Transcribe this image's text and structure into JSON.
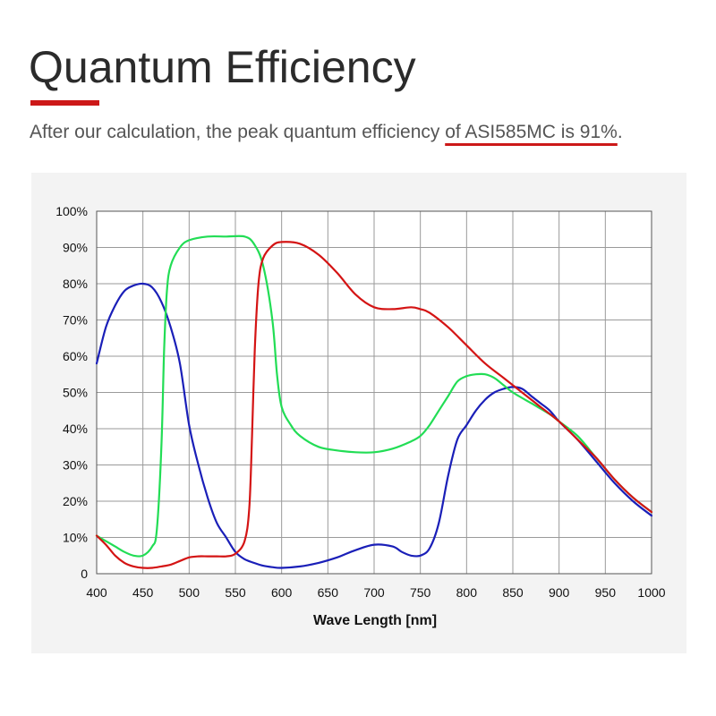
{
  "header": {
    "title": "Quantum Efficiency",
    "subtitle_prefix": "After our calculation, the peak quantum efficiency ",
    "subtitle_highlight": "of ASI585MC is 91%",
    "subtitle_suffix": ".",
    "accent_color": "#cc1818"
  },
  "chart_data": {
    "type": "line",
    "title": "",
    "xlabel": "Wave Length [nm]",
    "ylabel": "",
    "xlim": [
      400,
      1000
    ],
    "ylim": [
      0,
      100
    ],
    "grid": true,
    "x_ticks": [
      400,
      450,
      500,
      550,
      600,
      650,
      700,
      750,
      800,
      850,
      900,
      950,
      1000
    ],
    "y_ticks": [
      0,
      10,
      20,
      30,
      40,
      50,
      60,
      70,
      80,
      90,
      100
    ],
    "x_tick_labels": [
      "400",
      "450",
      "500",
      "550",
      "600",
      "650",
      "700",
      "750",
      "800",
      "850",
      "900",
      "950",
      "1000"
    ],
    "y_tick_labels": [
      "0",
      "10%",
      "20%",
      "30%",
      "40%",
      "50%",
      "60%",
      "70%",
      "80%",
      "90%",
      "100%"
    ],
    "series": [
      {
        "color": "#1a1fb8",
        "points": [
          [
            400,
            58
          ],
          [
            410,
            68
          ],
          [
            420,
            74
          ],
          [
            430,
            78
          ],
          [
            440,
            79.5
          ],
          [
            450,
            80
          ],
          [
            460,
            79
          ],
          [
            470,
            75
          ],
          [
            480,
            68
          ],
          [
            490,
            58
          ],
          [
            500,
            41
          ],
          [
            510,
            30
          ],
          [
            520,
            21
          ],
          [
            530,
            14
          ],
          [
            540,
            10
          ],
          [
            550,
            6
          ],
          [
            560,
            4
          ],
          [
            570,
            3
          ],
          [
            580,
            2.2
          ],
          [
            590,
            1.8
          ],
          [
            600,
            1.6
          ],
          [
            620,
            2
          ],
          [
            640,
            3
          ],
          [
            660,
            4.5
          ],
          [
            680,
            6.5
          ],
          [
            700,
            8
          ],
          [
            720,
            7.5
          ],
          [
            730,
            6
          ],
          [
            740,
            5
          ],
          [
            750,
            5
          ],
          [
            760,
            7
          ],
          [
            770,
            14
          ],
          [
            780,
            27
          ],
          [
            790,
            37
          ],
          [
            800,
            41
          ],
          [
            810,
            45
          ],
          [
            820,
            48
          ],
          [
            830,
            50
          ],
          [
            840,
            51
          ],
          [
            850,
            51.5
          ],
          [
            860,
            51
          ],
          [
            870,
            49
          ],
          [
            880,
            47
          ],
          [
            890,
            45
          ],
          [
            900,
            42
          ],
          [
            920,
            37
          ],
          [
            940,
            31
          ],
          [
            960,
            25
          ],
          [
            980,
            20
          ],
          [
            1000,
            16
          ]
        ]
      },
      {
        "color": "#22dd55",
        "points": [
          [
            400,
            10.5
          ],
          [
            410,
            9
          ],
          [
            420,
            7.5
          ],
          [
            430,
            6
          ],
          [
            440,
            5
          ],
          [
            450,
            5
          ],
          [
            460,
            7.5
          ],
          [
            465,
            12
          ],
          [
            470,
            35
          ],
          [
            473,
            62
          ],
          [
            476,
            78
          ],
          [
            480,
            85
          ],
          [
            490,
            90
          ],
          [
            500,
            92
          ],
          [
            520,
            93
          ],
          [
            540,
            93
          ],
          [
            560,
            93
          ],
          [
            570,
            91
          ],
          [
            580,
            85
          ],
          [
            590,
            70
          ],
          [
            595,
            55
          ],
          [
            600,
            46
          ],
          [
            610,
            41
          ],
          [
            620,
            38
          ],
          [
            640,
            35
          ],
          [
            660,
            34
          ],
          [
            680,
            33.5
          ],
          [
            700,
            33.5
          ],
          [
            720,
            34.5
          ],
          [
            740,
            36.5
          ],
          [
            750,
            38
          ],
          [
            760,
            41
          ],
          [
            770,
            45
          ],
          [
            780,
            49
          ],
          [
            790,
            53
          ],
          [
            800,
            54.5
          ],
          [
            810,
            55
          ],
          [
            820,
            55
          ],
          [
            830,
            54
          ],
          [
            840,
            52
          ],
          [
            850,
            50
          ],
          [
            870,
            47
          ],
          [
            890,
            44
          ],
          [
            900,
            42
          ],
          [
            920,
            38
          ],
          [
            940,
            32
          ],
          [
            960,
            26
          ],
          [
            980,
            21
          ],
          [
            1000,
            17
          ]
        ]
      },
      {
        "color": "#d41414",
        "points": [
          [
            400,
            10.5
          ],
          [
            410,
            8
          ],
          [
            420,
            5
          ],
          [
            430,
            3
          ],
          [
            440,
            2
          ],
          [
            450,
            1.6
          ],
          [
            460,
            1.6
          ],
          [
            470,
            2
          ],
          [
            480,
            2.5
          ],
          [
            490,
            3.5
          ],
          [
            500,
            4.5
          ],
          [
            510,
            4.8
          ],
          [
            520,
            4.8
          ],
          [
            530,
            4.8
          ],
          [
            540,
            4.8
          ],
          [
            550,
            5.5
          ],
          [
            560,
            9
          ],
          [
            565,
            18
          ],
          [
            568,
            38
          ],
          [
            571,
            62
          ],
          [
            575,
            80
          ],
          [
            580,
            87
          ],
          [
            590,
            90.5
          ],
          [
            600,
            91.5
          ],
          [
            620,
            91
          ],
          [
            640,
            88
          ],
          [
            660,
            83
          ],
          [
            680,
            77
          ],
          [
            700,
            73.5
          ],
          [
            720,
            73
          ],
          [
            740,
            73.5
          ],
          [
            750,
            73
          ],
          [
            760,
            72
          ],
          [
            780,
            68
          ],
          [
            800,
            63
          ],
          [
            820,
            58
          ],
          [
            840,
            54
          ],
          [
            860,
            50
          ],
          [
            880,
            46
          ],
          [
            900,
            42
          ],
          [
            920,
            37
          ],
          [
            940,
            32
          ],
          [
            960,
            26
          ],
          [
            980,
            21
          ],
          [
            1000,
            17
          ]
        ]
      }
    ]
  }
}
